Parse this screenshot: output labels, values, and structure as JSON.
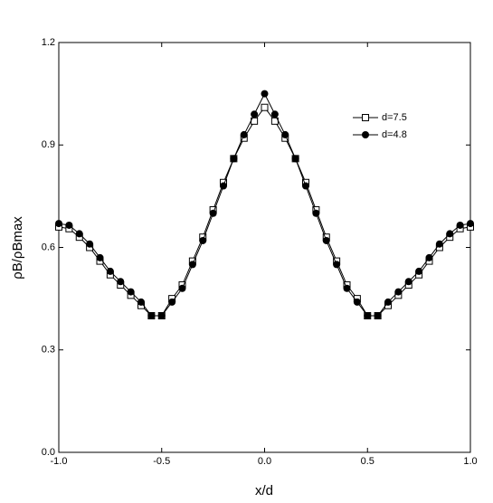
{
  "chart_data": {
    "type": "line",
    "x_label": "x/d",
    "y_label": "ρB/ρBmax",
    "x": [
      -1.0,
      -0.95,
      -0.9,
      -0.85,
      -0.8,
      -0.75,
      -0.7,
      -0.65,
      -0.6,
      -0.55,
      -0.5,
      -0.45,
      -0.4,
      -0.35,
      -0.3,
      -0.25,
      -0.2,
      -0.15,
      -0.1,
      -0.05,
      0,
      0.05,
      0.1,
      0.15,
      0.2,
      0.25,
      0.3,
      0.35,
      0.4,
      0.45,
      0.5,
      0.55,
      0.6,
      0.65,
      0.7,
      0.75,
      0.8,
      0.85,
      0.9,
      0.95,
      1.0
    ],
    "series": [
      {
        "name": "d=7.5",
        "color": "#000000",
        "marker": "square-open",
        "values": [
          0.66,
          0.655,
          0.63,
          0.6,
          0.56,
          0.52,
          0.49,
          0.46,
          0.43,
          0.4,
          0.4,
          0.45,
          0.49,
          0.56,
          0.63,
          0.71,
          0.79,
          0.86,
          0.92,
          0.97,
          1.01,
          0.97,
          0.92,
          0.86,
          0.79,
          0.71,
          0.63,
          0.56,
          0.49,
          0.45,
          0.4,
          0.4,
          0.43,
          0.46,
          0.49,
          0.52,
          0.56,
          0.6,
          0.63,
          0.655,
          0.66
        ]
      },
      {
        "name": "d=4.8",
        "color": "#000000",
        "marker": "circle-filled",
        "values": [
          0.67,
          0.665,
          0.64,
          0.61,
          0.57,
          0.53,
          0.5,
          0.47,
          0.44,
          0.4,
          0.4,
          0.44,
          0.48,
          0.55,
          0.62,
          0.7,
          0.78,
          0.86,
          0.93,
          0.99,
          1.05,
          0.99,
          0.93,
          0.86,
          0.78,
          0.7,
          0.62,
          0.55,
          0.48,
          0.44,
          0.4,
          0.4,
          0.44,
          0.47,
          0.5,
          0.53,
          0.57,
          0.61,
          0.64,
          0.665,
          0.67
        ]
      }
    ],
    "xlim": [
      -1.0,
      1.0
    ],
    "ylim": [
      0,
      1.2
    ],
    "xticks": [
      {
        "value": -1,
        "label": "-1.0"
      },
      -0.5,
      {
        "value": 0,
        "label": "0.0"
      },
      0.5,
      {
        "value": 1,
        "label": "1.0"
      }
    ],
    "yticks": [
      {
        "value": 0,
        "label": "0.0"
      },
      0.3,
      0.6,
      0.9,
      1.2
    ],
    "grid": false,
    "legend": "upper-right"
  }
}
